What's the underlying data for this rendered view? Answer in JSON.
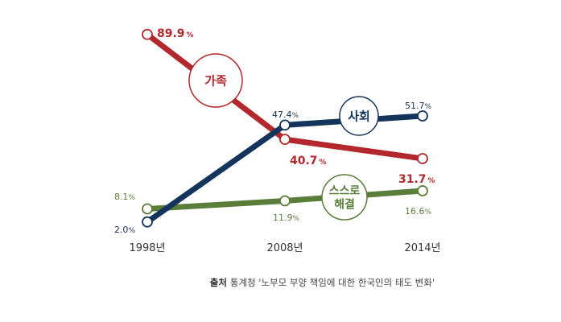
{
  "chart_data": {
    "type": "line",
    "x": [
      "1998년",
      "2008년",
      "2014년"
    ],
    "unit": "%",
    "series": [
      {
        "name": "가족",
        "color": "#b3282d",
        "values": [
          89.9,
          40.7,
          31.7
        ],
        "value_labels": [
          "89.9",
          "40.7",
          "31.7"
        ]
      },
      {
        "name": "사회",
        "color": "#13355c",
        "values": [
          2.0,
          47.4,
          51.7
        ],
        "value_labels": [
          "2.0",
          "47.4",
          "51.7"
        ]
      },
      {
        "name": "스스로 해결",
        "color": "#5a7d3a",
        "values": [
          8.1,
          11.9,
          16.6
        ],
        "value_labels": [
          "8.1",
          "11.9",
          "16.6"
        ]
      }
    ],
    "ylim": [
      0,
      100
    ],
    "grid": false
  },
  "source": {
    "label": "출처",
    "text": "통계청 '노부모 부양 책임에 대한 한국인의 태도 변화'"
  }
}
